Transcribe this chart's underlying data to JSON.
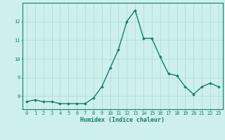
{
  "x": [
    0,
    1,
    2,
    3,
    4,
    5,
    6,
    7,
    8,
    9,
    10,
    11,
    12,
    13,
    14,
    15,
    16,
    17,
    18,
    19,
    20,
    21,
    22,
    23
  ],
  "y": [
    7.7,
    7.8,
    7.7,
    7.7,
    7.6,
    7.6,
    7.6,
    7.6,
    7.9,
    8.5,
    9.5,
    10.5,
    12.0,
    12.6,
    11.1,
    11.1,
    10.1,
    9.2,
    9.1,
    8.5,
    8.1,
    8.5,
    8.7,
    8.5
  ],
  "line_color": "#1a7a6e",
  "marker": "D",
  "markersize": 2.0,
  "linewidth": 1.0,
  "background_color": "#cdf0ec",
  "grid_color": "#b0ddd8",
  "axis_color": "#1a7a6e",
  "tick_color": "#1a7a6e",
  "xlabel": "Humidex (Indice chaleur)",
  "xlabel_fontsize": 6.0,
  "ylim": [
    7.3,
    13.0
  ],
  "xlim": [
    -0.5,
    23.5
  ],
  "ytick_labels": [
    "8",
    "9",
    "10",
    "11",
    "12"
  ],
  "ytick_vals": [
    8,
    9,
    10,
    11,
    12
  ],
  "xtick_labels": [
    "0",
    "1",
    "2",
    "3",
    "4",
    "5",
    "6",
    "7",
    "8",
    "9",
    "10",
    "11",
    "12",
    "13",
    "14",
    "15",
    "16",
    "17",
    "18",
    "19",
    "20",
    "21",
    "22",
    "23"
  ],
  "tick_fontsize": 5.0
}
